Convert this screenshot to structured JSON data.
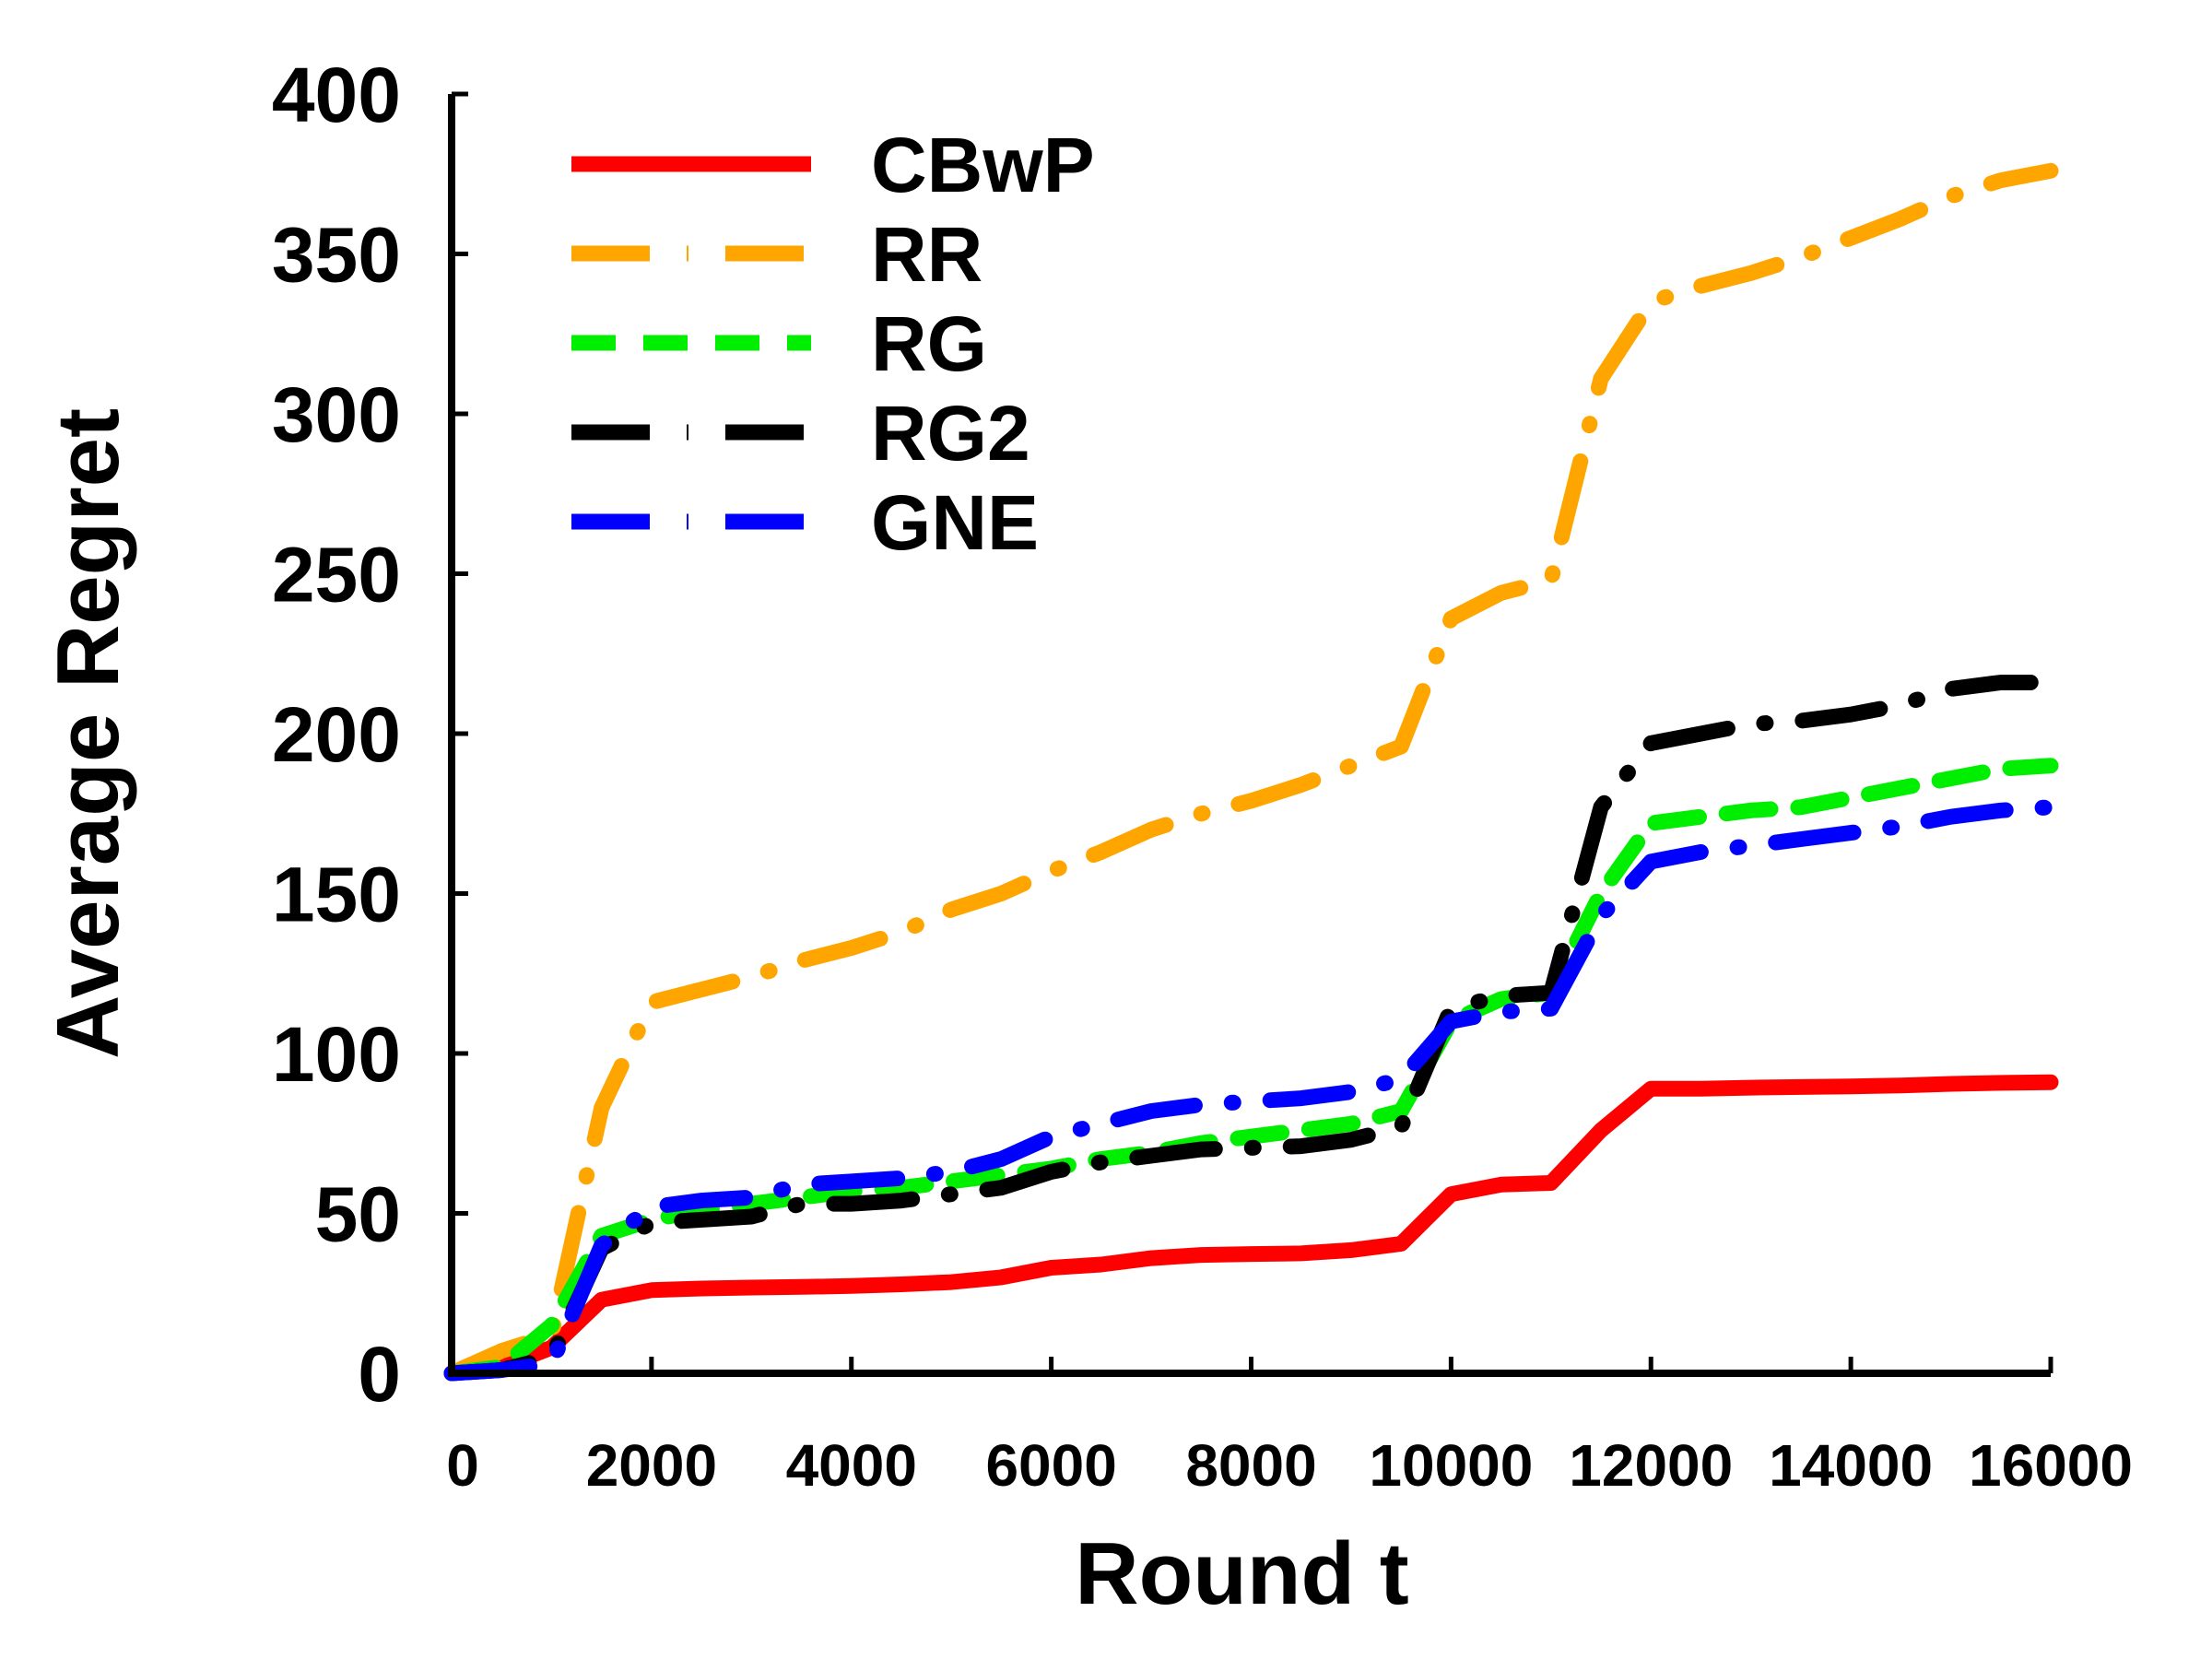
{
  "chart_data": {
    "type": "line",
    "title": "",
    "xlabel": "Round t",
    "ylabel": "Average Regret",
    "xlim": [
      0,
      16000
    ],
    "ylim": [
      0,
      400
    ],
    "xticks": [
      0,
      2000,
      4000,
      6000,
      8000,
      10000,
      12000,
      14000,
      16000
    ],
    "xtick_labels": [
      "0",
      "2000",
      "4000",
      "6000",
      "8000",
      "10000",
      "12000",
      "14000",
      "16000"
    ],
    "yticks": [
      0,
      50,
      100,
      150,
      200,
      250,
      300,
      350,
      400
    ],
    "ytick_labels": [
      "0",
      "50",
      "100",
      "150",
      "200",
      "250",
      "300",
      "350",
      "400"
    ],
    "legend_position": "top-left",
    "x": [
      0,
      500,
      1000,
      1500,
      2000,
      2500,
      3000,
      3500,
      4000,
      4500,
      5000,
      5500,
      6000,
      6500,
      7000,
      7500,
      8000,
      8500,
      9000,
      9500,
      10000,
      10500,
      11000,
      11500,
      12000,
      12500,
      13000,
      13500,
      14000,
      14500,
      15000,
      15500,
      16000
    ],
    "series": [
      {
        "name": "CBwP",
        "color": "#ff0000",
        "dash": "solid",
        "values": [
          0,
          2,
          8,
          23,
          26,
          26.5,
          26.8,
          27,
          27.3,
          27.8,
          28.5,
          30,
          33,
          34,
          36,
          37,
          37.3,
          37.5,
          38.5,
          40.5,
          56,
          59,
          59.5,
          76,
          89,
          89,
          89.3,
          89.5,
          89.7,
          90,
          90.5,
          90.8,
          91
        ]
      },
      {
        "name": "RR",
        "color": "#ffa500",
        "dash": "dashdot",
        "values": [
          0,
          7,
          12,
          83,
          116,
          120,
          124,
          129,
          133,
          138,
          145,
          150,
          157,
          163,
          170,
          175,
          179,
          184,
          190,
          196,
          236,
          244,
          248,
          311,
          335,
          340,
          344,
          349,
          355,
          361,
          368,
          373,
          376
        ]
      },
      {
        "name": "RG",
        "color": "#00ee00",
        "dash": "dashed",
        "values": [
          0,
          2,
          15,
          43,
          48,
          51,
          53,
          55,
          57,
          58,
          60,
          62,
          64,
          67,
          69,
          72,
          74,
          76,
          78,
          82,
          110,
          117,
          119,
          150,
          172,
          174,
          176,
          177,
          180,
          183,
          186,
          189,
          190
        ]
      },
      {
        "name": "RG2",
        "color": "#000000",
        "dash": "dashdot",
        "values": [
          0,
          1,
          5,
          39,
          47,
          48,
          49,
          53,
          53,
          54,
          56,
          58,
          63,
          66,
          68,
          70,
          70.5,
          71,
          73,
          77,
          114,
          118,
          119,
          177,
          197,
          200,
          203,
          204,
          206,
          209,
          214,
          216,
          216
        ]
      },
      {
        "name": "GNE",
        "color": "#0000ff",
        "dash": "dashdot",
        "values": [
          0,
          1,
          3,
          40,
          52,
          54,
          55,
          59,
          60,
          61,
          63,
          67,
          74,
          78,
          82,
          84,
          85,
          86,
          88,
          92,
          110,
          113,
          114,
          143,
          160,
          163,
          165,
          167,
          169,
          171,
          174,
          176,
          177
        ]
      }
    ]
  }
}
